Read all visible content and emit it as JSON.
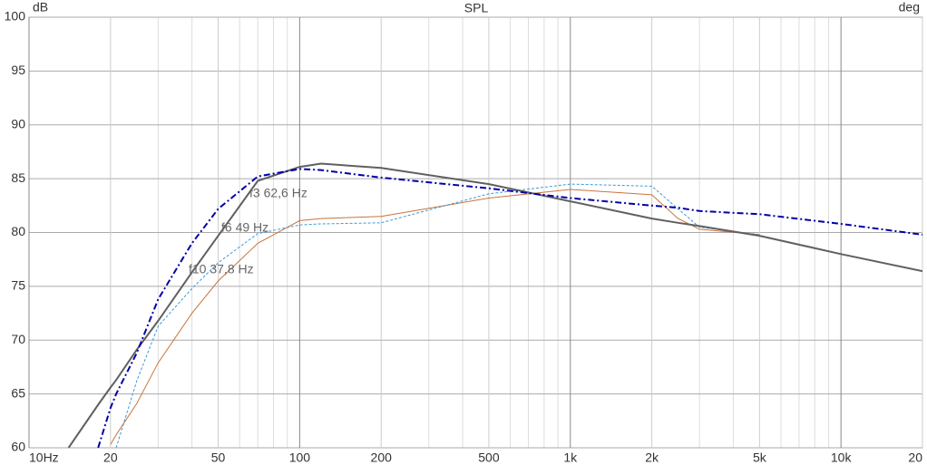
{
  "chart_data": {
    "type": "line",
    "title": "SPL",
    "y_unit": "dB",
    "y2_unit": "deg",
    "x_log": true,
    "grid": true,
    "xlim": [
      10,
      20000
    ],
    "ylim": [
      60,
      100
    ],
    "xticks": [
      {
        "value": 10,
        "label": "10Hz"
      },
      20,
      50,
      100,
      200,
      500,
      {
        "value": 1000,
        "label": "1k"
      },
      {
        "value": 2000,
        "label": "2k"
      },
      {
        "value": 5000,
        "label": "5k"
      },
      {
        "value": 10000,
        "label": "10k"
      },
      {
        "value": 20000,
        "label": "20"
      }
    ],
    "xgrid_minor": [
      30,
      40,
      60,
      70,
      80,
      90,
      300,
      400,
      600,
      700,
      800,
      900,
      3000,
      4000,
      6000,
      7000,
      8000,
      9000
    ],
    "yticks": [
      60,
      65,
      70,
      75,
      80,
      85,
      90,
      95,
      100
    ],
    "annotations": [
      "f3 62,6 Hz",
      "f6 49 Hz",
      "f10 37,8 Hz"
    ],
    "x": [
      14,
      18,
      20,
      21,
      25,
      30,
      40,
      50,
      70,
      100,
      120,
      200,
      500,
      1000,
      2000,
      2500,
      3000,
      5000,
      10000,
      20000
    ],
    "series": [
      {
        "color": "#c8743c",
        "line_style": "solid",
        "width": 1,
        "values": [
          null,
          null,
          60.3,
          61.2,
          64.1,
          67.9,
          72.5,
          75.5,
          79,
          81.1,
          81.3,
          81.5,
          83.2,
          84,
          83.5,
          81.3,
          80.3,
          79.8,
          null,
          null
        ]
      },
      {
        "color": "#3a9ad9",
        "line_style": "dashed",
        "width": 1,
        "values": [
          null,
          null,
          null,
          60,
          66.2,
          71.3,
          74.8,
          77.2,
          79.9,
          80.7,
          80.8,
          80.9,
          83.6,
          84.5,
          84.3,
          82.2,
          80.5,
          79.8,
          null,
          null
        ]
      },
      {
        "color": "#606060",
        "line_style": "solid",
        "width": 2,
        "values": [
          60,
          64,
          65.6,
          66.3,
          69.1,
          71.8,
          76.3,
          79.7,
          84.8,
          86.1,
          86.4,
          86,
          84.5,
          82.9,
          81.3,
          80.9,
          80.6,
          79.7,
          78,
          76.4
        ]
      },
      {
        "color": "#0000aa",
        "line_style": "dashdot",
        "width": 2,
        "values": [
          null,
          60,
          63.7,
          65,
          68.8,
          73.8,
          79,
          82.2,
          85.2,
          85.9,
          85.8,
          85.1,
          84.1,
          83.2,
          82.5,
          82.3,
          82,
          81.7,
          80.8,
          79.8
        ]
      }
    ]
  }
}
